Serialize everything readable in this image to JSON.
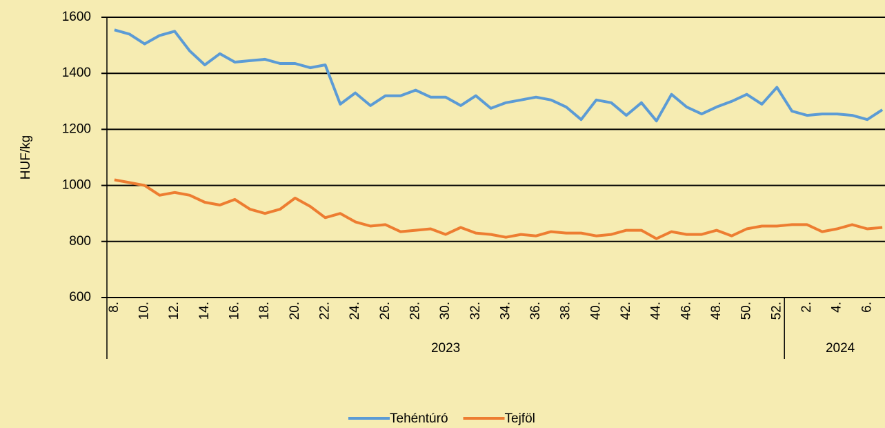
{
  "chart_data": {
    "type": "line",
    "y_label": "HUF/kg",
    "category_groups": [
      {
        "name": "2023",
        "categories": [
          "8.",
          null,
          "10.",
          null,
          "12.",
          null,
          "14.",
          null,
          "16.",
          null,
          "18.",
          null,
          "20.",
          null,
          "22.",
          null,
          "24.",
          null,
          "26.",
          null,
          "28.",
          null,
          "30.",
          null,
          "32.",
          null,
          "34.",
          null,
          "36.",
          null,
          "38.",
          null,
          "40.",
          null,
          "42.",
          null,
          "44.",
          null,
          "46.",
          null,
          "48.",
          null,
          "50.",
          null,
          "52."
        ]
      },
      {
        "name": "2024",
        "categories": [
          null,
          "2.",
          null,
          "4.",
          null,
          "6.",
          null
        ]
      }
    ],
    "series": [
      {
        "name": "Tehéntúró",
        "color": "#5b9bd5",
        "values": [
          1555,
          1540,
          1505,
          1535,
          1550,
          1480,
          1430,
          1470,
          1440,
          1445,
          1450,
          1435,
          1435,
          1420,
          1430,
          1290,
          1330,
          1285,
          1320,
          1320,
          1340,
          1315,
          1315,
          1285,
          1320,
          1275,
          1295,
          1305,
          1315,
          1305,
          1280,
          1235,
          1305,
          1295,
          1250,
          1295,
          1230,
          1325,
          1280,
          1255,
          1280,
          1300,
          1325,
          1290,
          1350,
          1265,
          1250,
          1255,
          1255,
          1250,
          1235,
          1270
        ]
      },
      {
        "name": "Tejföl",
        "color": "#ed7d31",
        "values": [
          1020,
          1010,
          1000,
          965,
          975,
          965,
          940,
          930,
          950,
          915,
          900,
          915,
          955,
          925,
          885,
          900,
          870,
          855,
          860,
          835,
          840,
          845,
          825,
          850,
          830,
          825,
          815,
          825,
          820,
          835,
          830,
          830,
          820,
          825,
          840,
          840,
          810,
          835,
          825,
          825,
          840,
          820,
          845,
          855,
          855,
          860,
          860,
          835,
          845,
          860,
          845,
          850
        ]
      }
    ],
    "ylim": [
      600,
      1600
    ],
    "yticks": [
      600,
      800,
      1000,
      1200,
      1400,
      1600
    ],
    "grid": true,
    "legend": "bottom"
  }
}
